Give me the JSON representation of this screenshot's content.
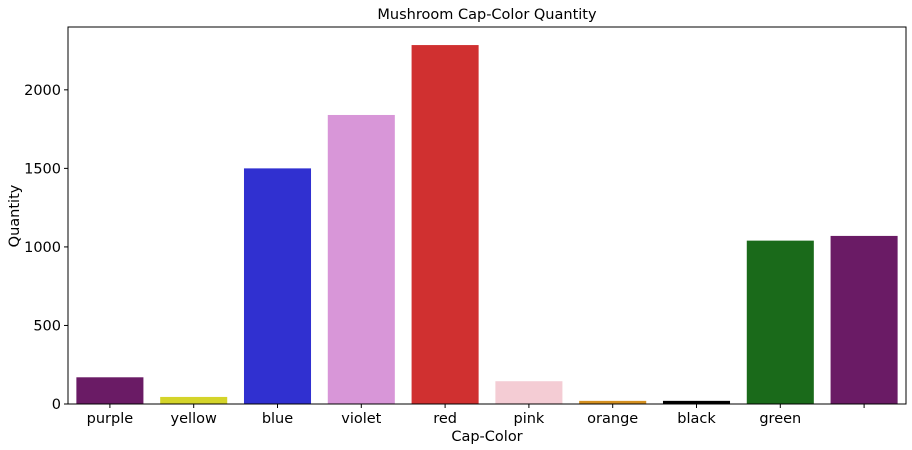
{
  "chart_data": {
    "type": "bar",
    "title": "Mushroom Cap-Color Quantity",
    "xlabel": "Cap-Color",
    "ylabel": "Quantity",
    "categories": [
      "purple",
      "yellow",
      "blue",
      "violet",
      "red",
      "pink",
      "orange",
      "black",
      "green",
      ""
    ],
    "values": [
      170,
      45,
      1500,
      1840,
      2285,
      145,
      20,
      20,
      1040,
      1070
    ],
    "colors": [
      "#6a1b65",
      "#d4d42a",
      "#3030d0",
      "#d896d8",
      "#d03030",
      "#f4ccd4",
      "#d49020",
      "#000000",
      "#1a6a1a",
      "#6a1b65"
    ],
    "ylim": [
      0,
      2400
    ],
    "yticks": [
      0,
      500,
      1000,
      1500,
      2000
    ],
    "grid": false,
    "legend": "none"
  }
}
